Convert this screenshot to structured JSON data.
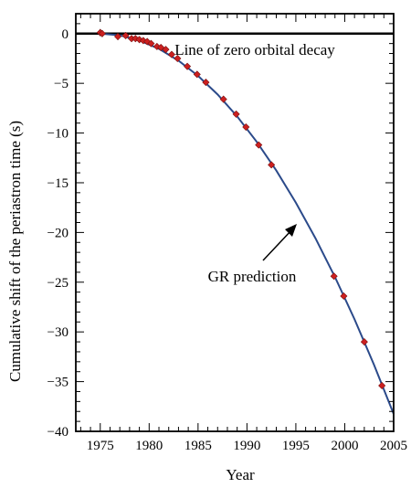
{
  "chart_data": {
    "type": "scatter",
    "xlabel": "Year",
    "ylabel": "Cumulative shift of the periastron time (s)",
    "xlim": [
      1972.5,
      2005
    ],
    "ylim": [
      -40,
      2
    ],
    "xticks": [
      1975,
      1980,
      1985,
      1990,
      1995,
      2000,
      2005
    ],
    "yticks": [
      0,
      -5,
      -10,
      -15,
      -20,
      -25,
      -30,
      -35,
      -40
    ],
    "grid": false,
    "annotations": {
      "zero_line": "Line of zero orbital decay",
      "gr_prediction": "GR prediction"
    },
    "series": [
      {
        "kind": "points",
        "color": "#cc2020",
        "x": [
          1975.0,
          1975.2,
          1976.8,
          1977.6,
          1978.2,
          1978.6,
          1979.0,
          1979.4,
          1979.8,
          1980.2,
          1980.8,
          1981.2,
          1981.7,
          1982.3,
          1982.9,
          1983.9,
          1984.9,
          1985.8,
          1987.6,
          1988.9,
          1989.9,
          1991.2,
          1992.5,
          1998.9,
          1999.9,
          2002.0,
          2003.8
        ],
        "y": [
          0.1,
          0.0,
          -0.3,
          -0.2,
          -0.5,
          -0.5,
          -0.6,
          -0.7,
          -0.8,
          -1.0,
          -1.3,
          -1.4,
          -1.6,
          -2.1,
          -2.5,
          -3.3,
          -4.1,
          -4.9,
          -6.6,
          -8.1,
          -9.4,
          -11.2,
          -13.2,
          -24.4,
          -26.4,
          -31.0,
          -35.4
        ],
        "yerr": [
          0.35,
          0.35,
          0.35,
          0.3,
          0.3,
          0.25,
          0.25,
          0.25,
          0.25,
          0.2,
          0.2,
          0.2,
          0.2,
          0.15,
          0.15,
          0.15,
          0.15,
          0.15,
          0.15,
          0.15,
          0.15,
          0.15,
          0.15,
          0.15,
          0.15,
          0.15,
          0.15
        ]
      },
      {
        "kind": "curve",
        "color": "#2b4a8a",
        "x": [
          1975,
          1977,
          1979,
          1981,
          1983,
          1985,
          1987,
          1989,
          1991,
          1993,
          1995,
          1997,
          1999,
          2001,
          2003,
          2005
        ],
        "y": [
          0.0,
          -0.17,
          -0.68,
          -1.53,
          -2.72,
          -4.25,
          -6.12,
          -8.33,
          -10.88,
          -13.77,
          -17.0,
          -20.57,
          -24.48,
          -28.73,
          -33.32,
          -38.25
        ]
      }
    ],
    "colors": {
      "data_points": "#cc2020",
      "gr_curve": "#2b4a8a",
      "zero_line": "#000000"
    }
  }
}
